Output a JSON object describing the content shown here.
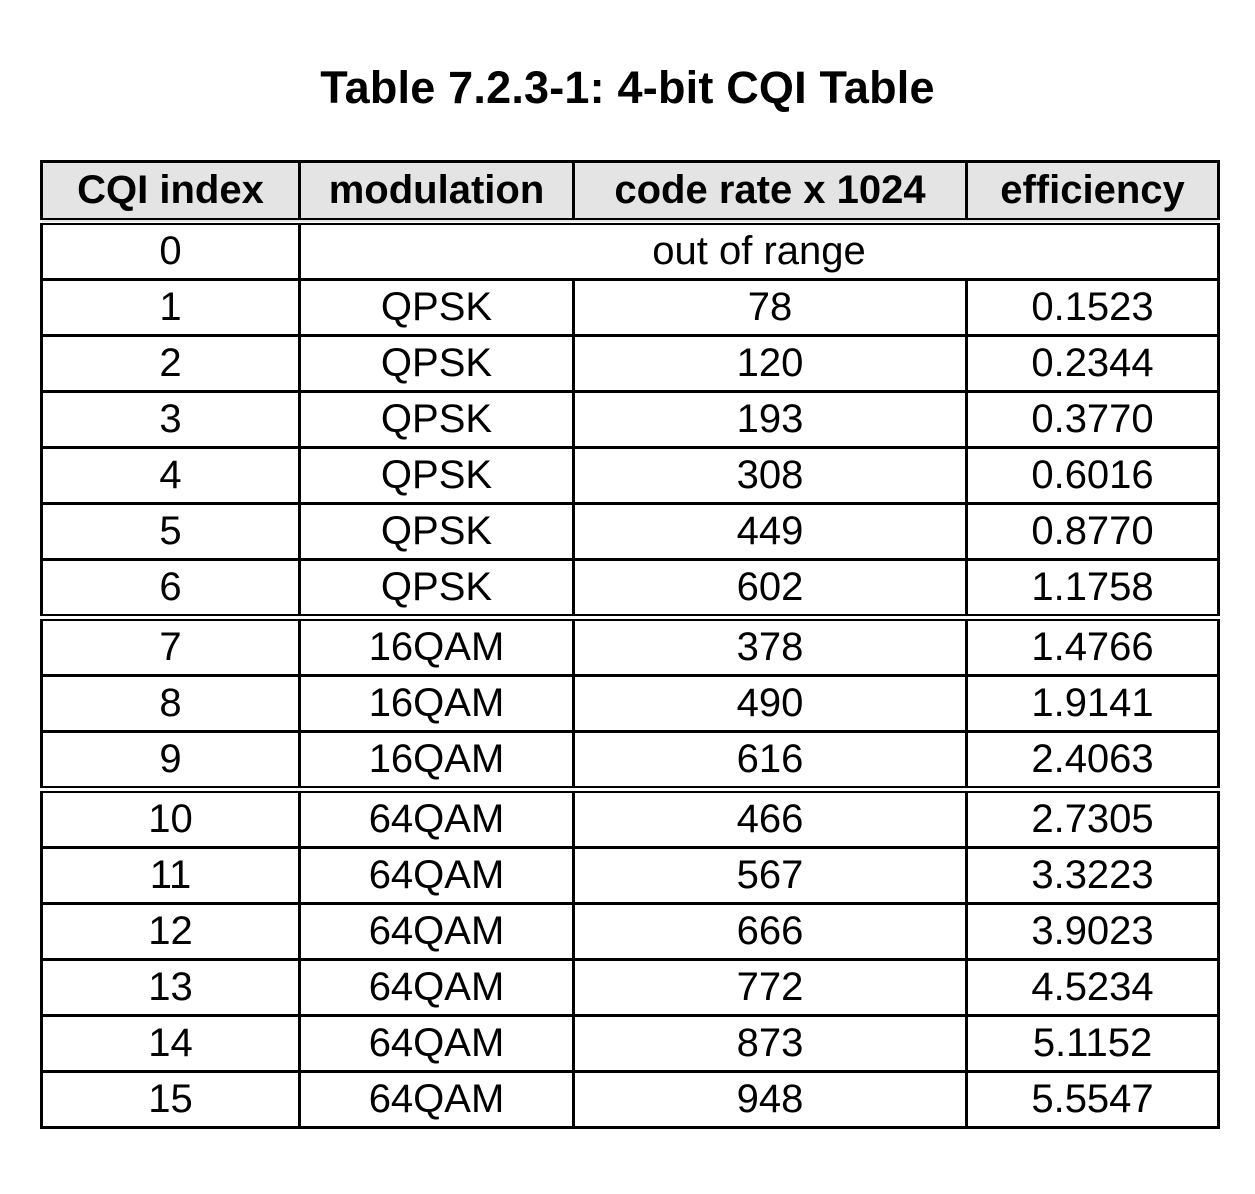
{
  "title": "Table 7.2.3-1: 4-bit CQI Table",
  "table": {
    "headers": [
      "CQI index",
      "modulation",
      "code rate x 1024",
      "efficiency"
    ],
    "out_of_range_row": {
      "index": "0",
      "label": "out of range"
    },
    "rows": [
      {
        "index": "1",
        "modulation": "QPSK",
        "code_rate": "78",
        "efficiency": "0.1523"
      },
      {
        "index": "2",
        "modulation": "QPSK",
        "code_rate": "120",
        "efficiency": "0.2344"
      },
      {
        "index": "3",
        "modulation": "QPSK",
        "code_rate": "193",
        "efficiency": "0.3770"
      },
      {
        "index": "4",
        "modulation": "QPSK",
        "code_rate": "308",
        "efficiency": "0.6016"
      },
      {
        "index": "5",
        "modulation": "QPSK",
        "code_rate": "449",
        "efficiency": "0.8770"
      },
      {
        "index": "6",
        "modulation": "QPSK",
        "code_rate": "602",
        "efficiency": "1.1758"
      },
      {
        "index": "7",
        "modulation": "16QAM",
        "code_rate": "378",
        "efficiency": "1.4766"
      },
      {
        "index": "8",
        "modulation": "16QAM",
        "code_rate": "490",
        "efficiency": "1.9141"
      },
      {
        "index": "9",
        "modulation": "16QAM",
        "code_rate": "616",
        "efficiency": "2.4063"
      },
      {
        "index": "10",
        "modulation": "64QAM",
        "code_rate": "466",
        "efficiency": "2.7305"
      },
      {
        "index": "11",
        "modulation": "64QAM",
        "code_rate": "567",
        "efficiency": "3.3223"
      },
      {
        "index": "12",
        "modulation": "64QAM",
        "code_rate": "666",
        "efficiency": "3.9023"
      },
      {
        "index": "13",
        "modulation": "64QAM",
        "code_rate": "772",
        "efficiency": "4.5234"
      },
      {
        "index": "14",
        "modulation": "64QAM",
        "code_rate": "873",
        "efficiency": "5.1152"
      },
      {
        "index": "15",
        "modulation": "64QAM",
        "code_rate": "948",
        "efficiency": "5.5547"
      }
    ]
  }
}
